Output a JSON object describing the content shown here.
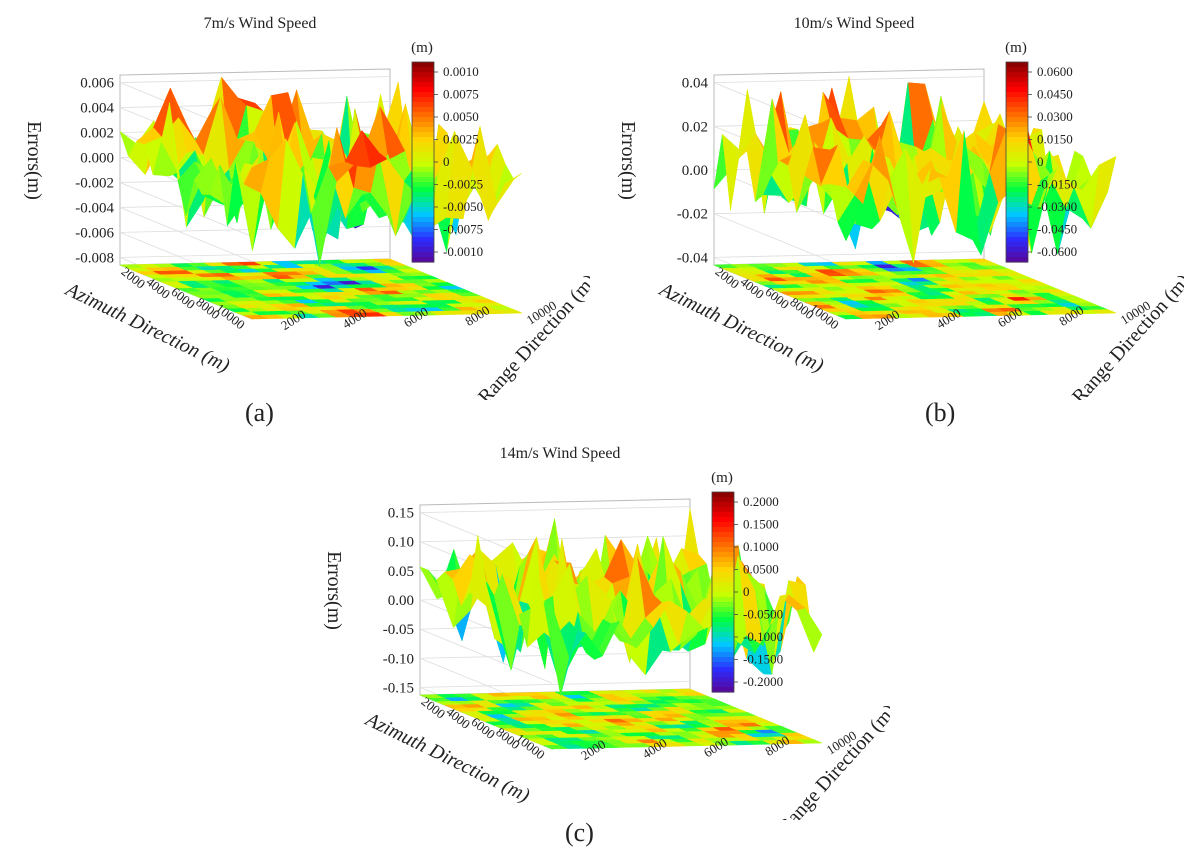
{
  "colors": {
    "colormap": [
      "#5e008c",
      "#2c2cff",
      "#00c8ff",
      "#00ff40",
      "#c8ff00",
      "#ffd400",
      "#ff6a00",
      "#ff0000",
      "#8c0000"
    ]
  },
  "chart_data": [
    {
      "type": "surface",
      "panel_label": "(a)",
      "title": "7m/s Wind Speed",
      "zlabel": "Errors(m)",
      "xlabel": "Azimuth Direction (m)",
      "ylabel": "Range Direction (m)",
      "colorbar_unit": "(m)",
      "z_ticks": [
        "0.006",
        "0.004",
        "0.002",
        "0.000",
        "-0.002",
        "-0.004",
        "-0.006",
        "-0.008"
      ],
      "zlim": [
        -0.008,
        0.006
      ],
      "x_ticks": [
        "2000",
        "4000",
        "6000",
        "8000",
        "10000"
      ],
      "y_ticks": [
        "10000",
        "8000",
        "6000",
        "4000",
        "2000"
      ],
      "colorbar_ticks": [
        "0.0010",
        "0.0075",
        "0.0050",
        "0.0025",
        "0",
        "-0.0025",
        "-0.0050",
        "-0.0075",
        "-0.0010"
      ],
      "grid_size": 17,
      "seed": 7
    },
    {
      "type": "surface",
      "panel_label": "(b)",
      "title": "10m/s Wind Speed",
      "zlabel": "Errors(m)",
      "xlabel": "Azimuth Direction (m)",
      "ylabel": "Range Direction (m)",
      "colorbar_unit": "(m)",
      "z_ticks": [
        "0.04",
        "0.02",
        "0.00",
        "-0.02",
        "-0.04"
      ],
      "zlim": [
        -0.04,
        0.04
      ],
      "x_ticks": [
        "2000",
        "4000",
        "6000",
        "8000",
        "10000"
      ],
      "y_ticks": [
        "10000",
        "8000",
        "6000",
        "4000",
        "2000"
      ],
      "colorbar_ticks": [
        "0.0600",
        "0.0450",
        "0.0300",
        "0.0150",
        "0",
        "-0.0150",
        "-0.0300",
        "-0.0450",
        "-0.0600"
      ],
      "grid_size": 17,
      "seed": 10
    },
    {
      "type": "surface",
      "panel_label": "(c)",
      "title": "14m/s Wind Speed",
      "zlabel": "Errors(m)",
      "xlabel": "Azimuth Direction (m)",
      "ylabel": "Range Direction (m)",
      "colorbar_unit": "(m)",
      "z_ticks": [
        "0.15",
        "0.10",
        "0.05",
        "0.00",
        "-0.05",
        "-0.10",
        "-0.15"
      ],
      "zlim": [
        -0.15,
        0.15
      ],
      "x_ticks": [
        "2000",
        "4000",
        "6000",
        "8000",
        "10000"
      ],
      "y_ticks": [
        "10000",
        "8000",
        "6000",
        "4000",
        "2000"
      ],
      "colorbar_ticks": [
        "0.2000",
        "0.1500",
        "0.1000",
        "0.0500",
        "0",
        "-0.0500",
        "-0.1000",
        "-0.1500",
        "-0.2000"
      ],
      "grid_size": 17,
      "seed": 14
    }
  ]
}
